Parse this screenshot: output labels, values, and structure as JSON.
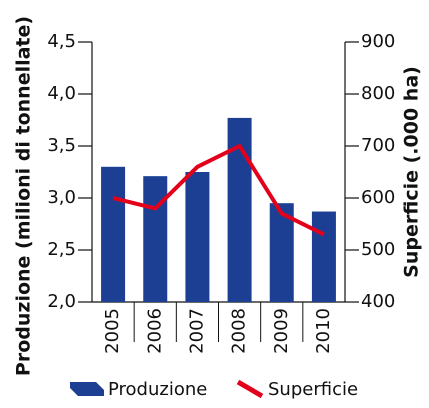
{
  "chart_data": {
    "type": "bar-line",
    "y_label": "Produzione (milioni di tonnellate)",
    "y2_label": "Superficie (.000 ha)",
    "categories": [
      "2005",
      "2006",
      "2007",
      "2008",
      "2009",
      "2010"
    ],
    "series": [
      {
        "name": "Produzione",
        "type": "bar",
        "color": "#1c3f94",
        "values": [
          3.3,
          3.21,
          3.25,
          3.77,
          2.95,
          2.87
        ]
      },
      {
        "name": "Superficie",
        "type": "line",
        "axis": "y2",
        "color": "#e3001b",
        "values": [
          600,
          580,
          660,
          700,
          570,
          530
        ]
      }
    ],
    "ylim": [
      2.0,
      4.5
    ],
    "yticks": [
      {
        "value": 2.0,
        "label": "2,0"
      },
      {
        "value": 2.5,
        "label": "2,5"
      },
      {
        "value": 3.0,
        "label": "3,0"
      },
      {
        "value": 3.5,
        "label": "3,5"
      },
      {
        "value": 4.0,
        "label": "4,0"
      },
      {
        "value": 4.5,
        "label": "4,5"
      }
    ],
    "y2lim": [
      400,
      900
    ],
    "y2ticks": [
      400,
      500,
      600,
      700,
      800,
      900
    ]
  }
}
